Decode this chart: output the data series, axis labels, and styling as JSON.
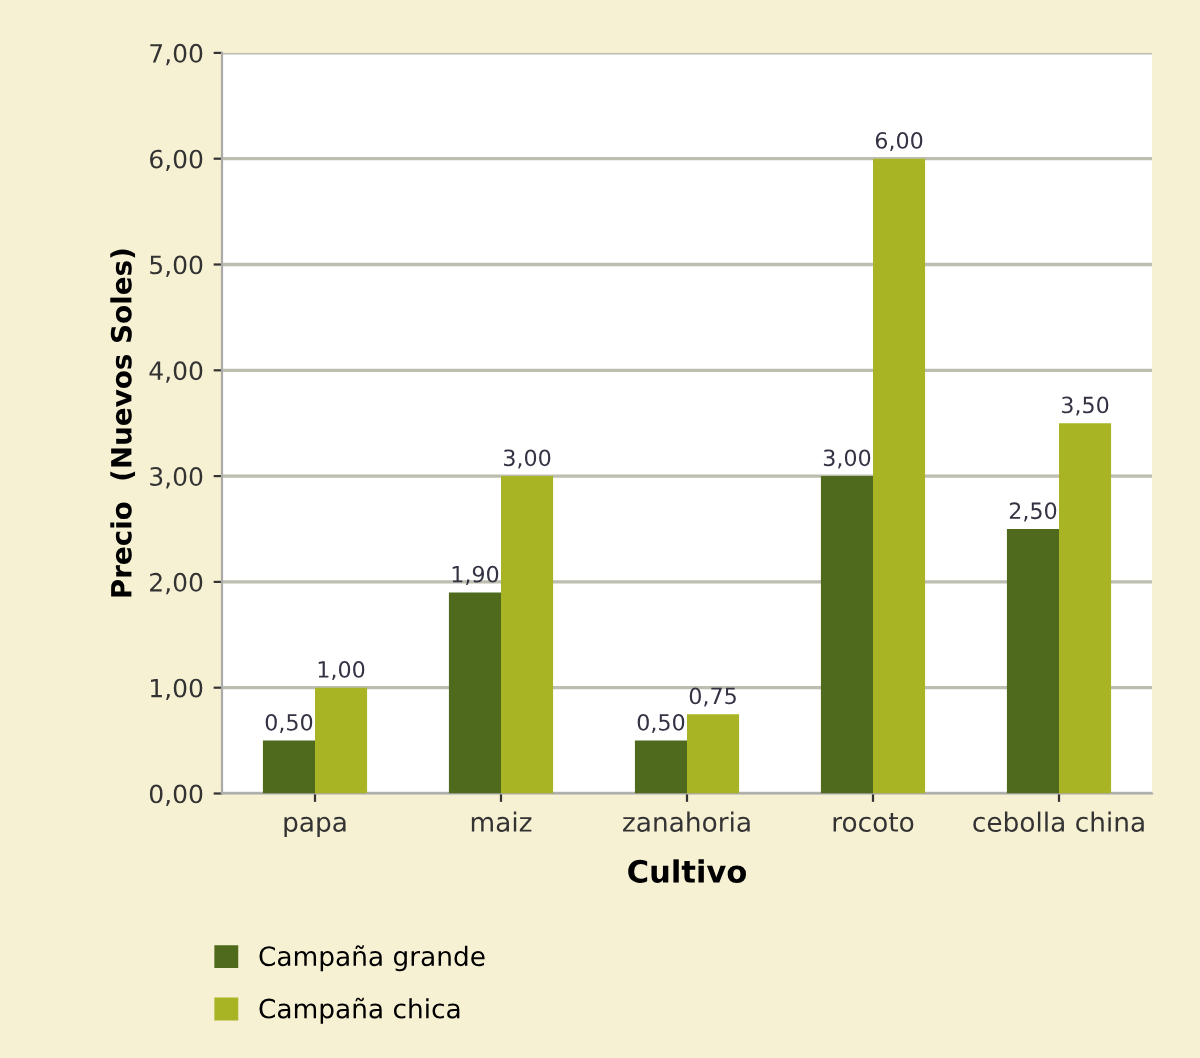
{
  "chart_data": {
    "type": "bar",
    "xlabel": "Cultivo",
    "ylabel": "Precio  (Nuevos Soles)",
    "categories": [
      "papa",
      "maiz",
      "zanahoria",
      "rocoto",
      "cebolla china"
    ],
    "series": [
      {
        "name": "Campaña grande",
        "color": "#4f6a1c",
        "values": [
          0.5,
          1.9,
          0.5,
          3.0,
          2.5
        ],
        "value_labels": [
          "0,50",
          "1,90",
          "0,50",
          "3,00",
          "2,50"
        ]
      },
      {
        "name": "Campaña chica",
        "color": "#a8b423",
        "values": [
          1.0,
          3.0,
          0.75,
          6.0,
          3.5
        ],
        "value_labels": [
          "1,00",
          "3,00",
          "0,75",
          "6,00",
          "3,50"
        ]
      }
    ],
    "ylim": [
      0,
      7
    ],
    "yticks": [
      {
        "value": 0,
        "label": "0,00"
      },
      {
        "value": 1,
        "label": "1,00"
      },
      {
        "value": 2,
        "label": "2,00"
      },
      {
        "value": 3,
        "label": "3,00"
      },
      {
        "value": 4,
        "label": "4,00"
      },
      {
        "value": 5,
        "label": "5,00"
      },
      {
        "value": 6,
        "label": "6,00"
      },
      {
        "value": 7,
        "label": "7,00"
      }
    ],
    "grid": "y",
    "legend": "bottom left"
  }
}
